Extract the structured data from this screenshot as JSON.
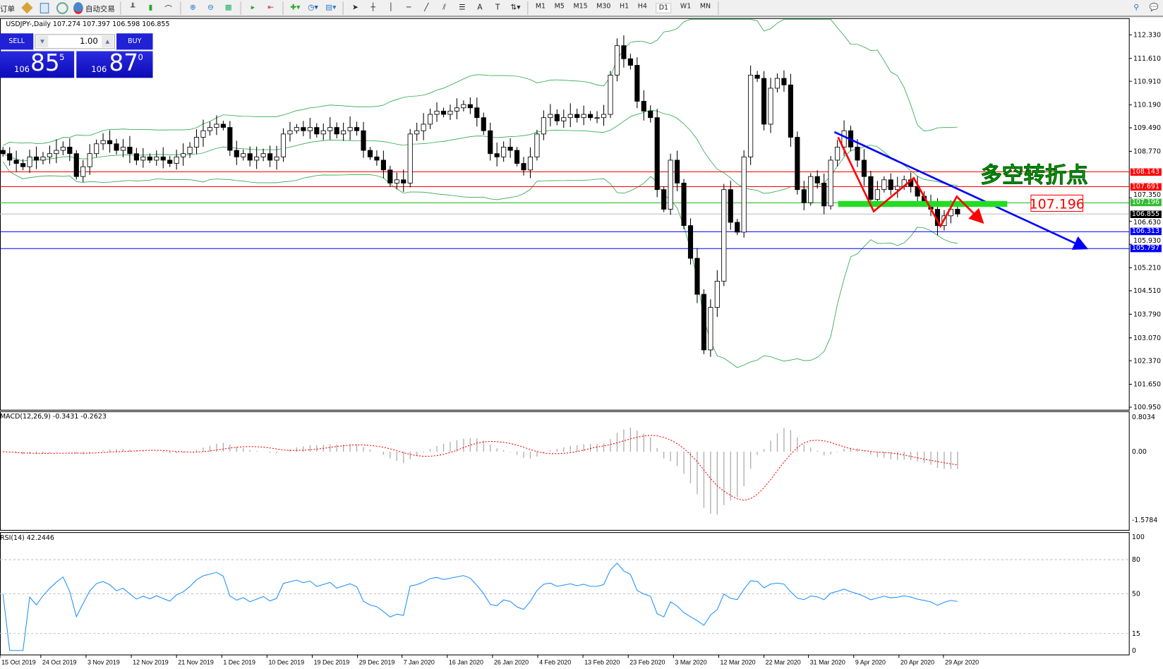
{
  "toolbar": {
    "items": [
      {
        "label": "新订单",
        "icon": "new-order-icon"
      },
      {
        "label": "",
        "icon": "metaeditor-icon"
      },
      {
        "label": "",
        "icon": "navigator-icon"
      },
      {
        "label": "",
        "icon": "signal-icon"
      },
      {
        "label": "自动交易",
        "icon": "autotrading-icon"
      }
    ],
    "timeframes": [
      "M1",
      "M5",
      "M15",
      "M30",
      "H1",
      "H4",
      "D1",
      "W1",
      "MN"
    ],
    "active_timeframe": "D1"
  },
  "symbol_line": "USDJPY-,Daily  107.274 107.397 106.598 106.855",
  "trade_panel": {
    "sell_label": "SELL",
    "buy_label": "BUY",
    "lot": "1.00",
    "sell_small": "106",
    "sell_big": "85",
    "sell_exp": "5",
    "buy_small": "106",
    "buy_big": "87",
    "buy_exp": "0"
  },
  "price_axis": {
    "ticks": [
      "112.330",
      "111.610",
      "110.910",
      "110.190",
      "109.490",
      "108.770",
      "107.350",
      "106.630",
      "105.930",
      "105.210",
      "104.510",
      "103.790",
      "103.070",
      "102.370",
      "101.650",
      "100.950"
    ],
    "tick_values": [
      112.33,
      111.61,
      110.91,
      110.19,
      109.49,
      108.77,
      107.35,
      106.63,
      105.93,
      105.21,
      104.51,
      103.79,
      103.07,
      102.37,
      101.65,
      100.95
    ]
  },
  "levels": [
    {
      "label": "108.143",
      "value": 108.143,
      "color": "#ff0000"
    },
    {
      "label": "107.691",
      "value": 107.691,
      "color": "#ff0000"
    },
    {
      "label": "107.196",
      "value": 107.196,
      "color": "#33bb33"
    },
    {
      "label": "106.855",
      "value": 106.855,
      "color": "#000000"
    },
    {
      "label": "106.313",
      "value": 106.313,
      "color": "#0000ff"
    },
    {
      "label": "105.797",
      "value": 105.797,
      "color": "#0000ff"
    }
  ],
  "annotation": {
    "text": "多空转折点",
    "price_box": "107.196",
    "text_color": "#00dd00",
    "box_color": "#ff0000"
  },
  "macd": {
    "label": "MACD(12,26,9) -0.3431 -0.2623",
    "ticks": [
      "0.8034",
      "0.00",
      "-1.5784"
    ]
  },
  "rsi": {
    "label": "RSI(14) 42.2446",
    "ticks": [
      "100",
      "80",
      "50",
      "15",
      "0"
    ]
  },
  "dates": [
    "15 Oct 2019",
    "24 Oct 2019",
    "3 Nov 2019",
    "12 Nov 2019",
    "21 Nov 2019",
    "1 Dec 2019",
    "10 Dec 2019",
    "19 Dec 2019",
    "29 Dec 2019",
    "7 Jan 2020",
    "16 Jan 2020",
    "26 Jan 2020",
    "4 Feb 2020",
    "13 Feb 2020",
    "23 Feb 2020",
    "3 Mar 2020",
    "12 Mar 2020",
    "22 Mar 2020",
    "31 Mar 2020",
    "9 Apr 2020",
    "20 Apr 2020",
    "29 Apr 2020"
  ],
  "chart_data": {
    "type": "candlestick",
    "symbol": "USDJPY",
    "timeframe": "Daily",
    "closes_approx": [
      108.7,
      108.5,
      108.4,
      108.3,
      108.6,
      108.5,
      108.6,
      108.7,
      108.8,
      108.9,
      108.7,
      108.0,
      108.3,
      108.7,
      109.0,
      109.1,
      109.0,
      108.8,
      108.9,
      108.7,
      108.5,
      108.6,
      108.5,
      108.6,
      108.5,
      108.4,
      108.6,
      108.7,
      108.9,
      109.2,
      109.4,
      109.5,
      109.6,
      109.5,
      108.8,
      108.6,
      108.7,
      108.5,
      108.6,
      108.7,
      108.5,
      108.6,
      109.3,
      109.4,
      109.5,
      109.4,
      109.5,
      109.3,
      109.4,
      109.5,
      109.3,
      109.4,
      109.5,
      109.4,
      108.8,
      108.6,
      108.5,
      108.2,
      107.8,
      107.9,
      107.8,
      109.3,
      109.4,
      109.6,
      109.9,
      110.0,
      109.9,
      110.0,
      110.1,
      110.2,
      110.1,
      109.8,
      109.4,
      108.7,
      108.6,
      108.9,
      108.8,
      108.4,
      108.2,
      108.6,
      109.3,
      109.8,
      109.9,
      109.7,
      109.8,
      109.9,
      109.8,
      109.9,
      109.8,
      109.8,
      109.9,
      111.1,
      112.0,
      111.6,
      111.4,
      110.3,
      110.0,
      109.8,
      107.6,
      107.0,
      108.5,
      107.8,
      106.5,
      105.5,
      104.4,
      102.7,
      104.0,
      104.8,
      107.6,
      106.6,
      106.3,
      108.6,
      111.1,
      111.0,
      109.6,
      110.7,
      111.0,
      110.8,
      109.2,
      107.6,
      107.2,
      108.0,
      107.8,
      107.1,
      108.5,
      108.9,
      109.4,
      108.9,
      108.5,
      108.0,
      107.3,
      107.6,
      107.9,
      107.6,
      107.7,
      107.9,
      107.7,
      107.4,
      107.2,
      107.0,
      106.5,
      106.8,
      107.0,
      106.855
    ],
    "last": {
      "open": 107.274,
      "high": 107.397,
      "low": 106.598,
      "close": 106.855
    }
  }
}
